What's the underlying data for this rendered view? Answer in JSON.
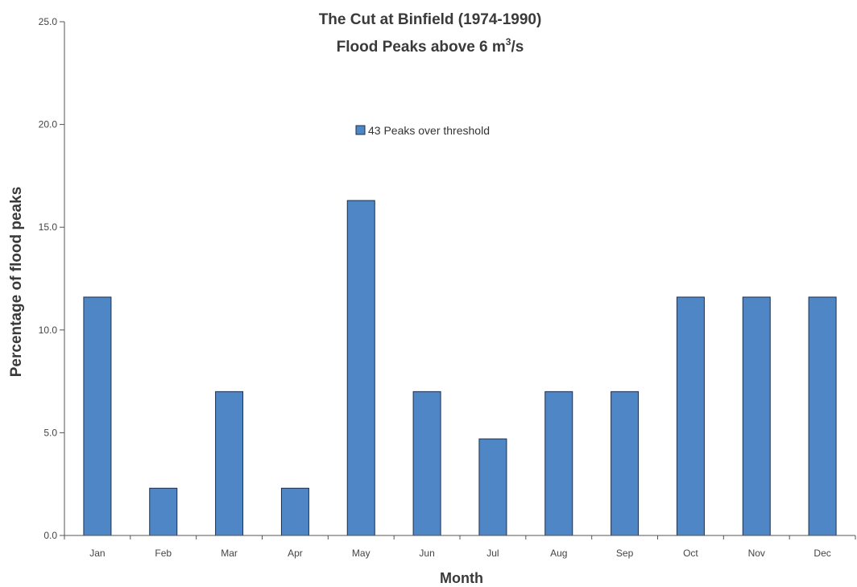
{
  "chart_data": {
    "type": "bar",
    "title": "The Cut at Binfield (1974-1990)",
    "subtitle": {
      "prefix": "Flood Peaks above 6 m",
      "sup": "3",
      "suffix": "/s"
    },
    "xlabel": "Month",
    "ylabel": "Percentage of flood peaks",
    "categories": [
      "Jan",
      "Feb",
      "Mar",
      "Apr",
      "May",
      "Jun",
      "Jul",
      "Aug",
      "Sep",
      "Oct",
      "Nov",
      "Dec"
    ],
    "series": [
      {
        "name": "43 Peaks over threshold",
        "values": [
          11.6,
          2.3,
          7.0,
          2.3,
          16.3,
          7.0,
          4.7,
          7.0,
          7.0,
          11.6,
          11.6,
          11.6
        ]
      }
    ],
    "ylim": [
      0,
      25
    ],
    "yticks": [
      "0.0",
      "5.0",
      "10.0",
      "15.0",
      "20.0",
      "25.0"
    ],
    "grid": false,
    "legend_position": "top-center",
    "colors": {
      "bar_fill": "#4f86c6",
      "bar_stroke": "#1c2f4d",
      "axis": "#555555"
    }
  }
}
